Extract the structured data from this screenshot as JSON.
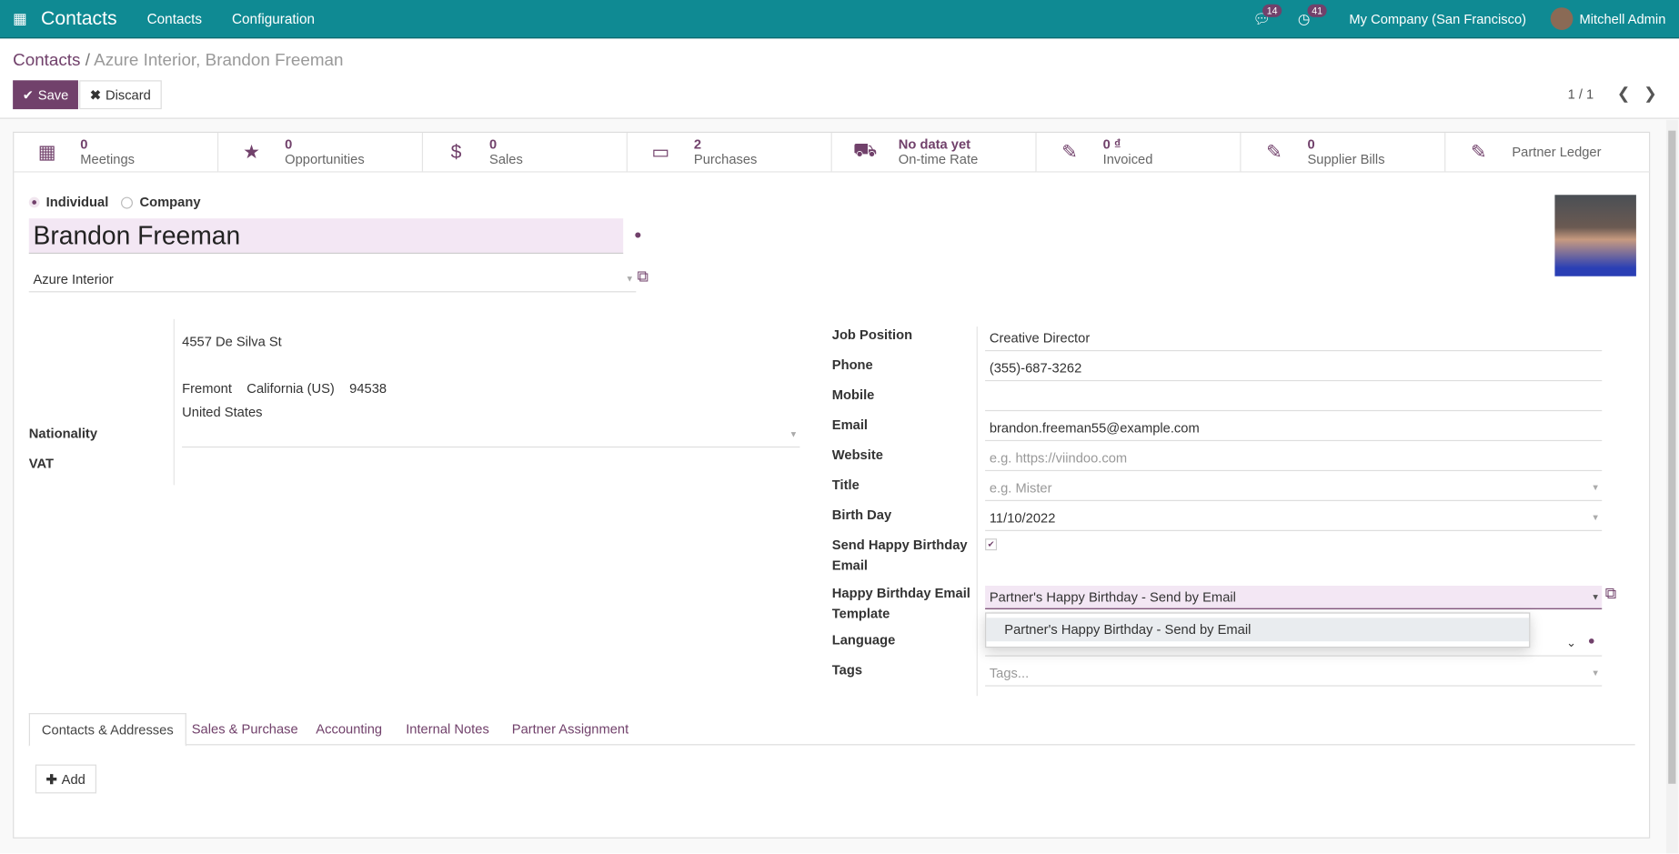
{
  "navbar": {
    "app": "Contacts",
    "menus": [
      "Contacts",
      "Configuration"
    ],
    "messages_count": "14",
    "activities_count": "41",
    "company": "My Company (San Francisco)",
    "user": "Mitchell Admin",
    "color": "#0f8a93"
  },
  "breadcrumb": {
    "parent": "Contacts",
    "current": "Azure Interior, Brandon Freeman"
  },
  "actions": {
    "save": "Save",
    "discard": "Discard",
    "pager": "1 / 1"
  },
  "smart_buttons": [
    {
      "value": "0",
      "label": "Meetings",
      "icon": "calendar-icon"
    },
    {
      "value": "0",
      "label": "Opportunities",
      "icon": "star-icon"
    },
    {
      "value": "0",
      "label": "Sales",
      "icon": "dollar-icon"
    },
    {
      "value": "2",
      "label": "Purchases",
      "icon": "credit-card-icon"
    },
    {
      "value": "No data yet",
      "label": "On-time Rate",
      "icon": "truck-icon"
    },
    {
      "value": "0 ₫",
      "label": "Invoiced",
      "icon": "edit-icon"
    },
    {
      "value": "0",
      "label": "Supplier Bills",
      "icon": "edit-icon"
    },
    {
      "value": "",
      "label": "Partner Ledger",
      "icon": "edit-icon"
    }
  ],
  "form": {
    "type_options": [
      "Individual",
      "Company"
    ],
    "type_selected": "Individual",
    "name": "Brandon Freeman",
    "company": "Azure Interior",
    "address": {
      "street": "4557 De Silva St",
      "city": "Fremont",
      "state": "California (US)",
      "zip": "94538",
      "country": "United States"
    },
    "left_labels": {
      "nationality": "Nationality",
      "vat": "VAT"
    },
    "fields": [
      {
        "label": "Job Position",
        "value": "Creative Director"
      },
      {
        "label": "Phone",
        "value": "(355)-687-3262"
      },
      {
        "label": "Mobile",
        "value": ""
      },
      {
        "label": "Email",
        "value": "brandon.freeman55@example.com"
      },
      {
        "label": "Website",
        "placeholder": "e.g. https://viindoo.com"
      },
      {
        "label": "Title",
        "placeholder": "e.g. Mister"
      },
      {
        "label": "Birth Day",
        "value": "11/10/2022"
      },
      {
        "label": "Send Happy Birthday Email",
        "checked": true
      },
      {
        "label": "Happy Birthday Email Template",
        "value": "Partner's Happy Birthday - Send by Email"
      },
      {
        "label": "Language",
        "value": ""
      },
      {
        "label": "Tags",
        "placeholder": "Tags..."
      }
    ],
    "dropdown_options": [
      "Partner's Happy Birthday - Send by Email"
    ]
  },
  "tabs": [
    "Contacts & Addresses",
    "Sales & Purchase",
    "Accounting",
    "Internal Notes",
    "Partner Assignment"
  ],
  "tab_active": "Contacts & Addresses",
  "add_button": "Add"
}
